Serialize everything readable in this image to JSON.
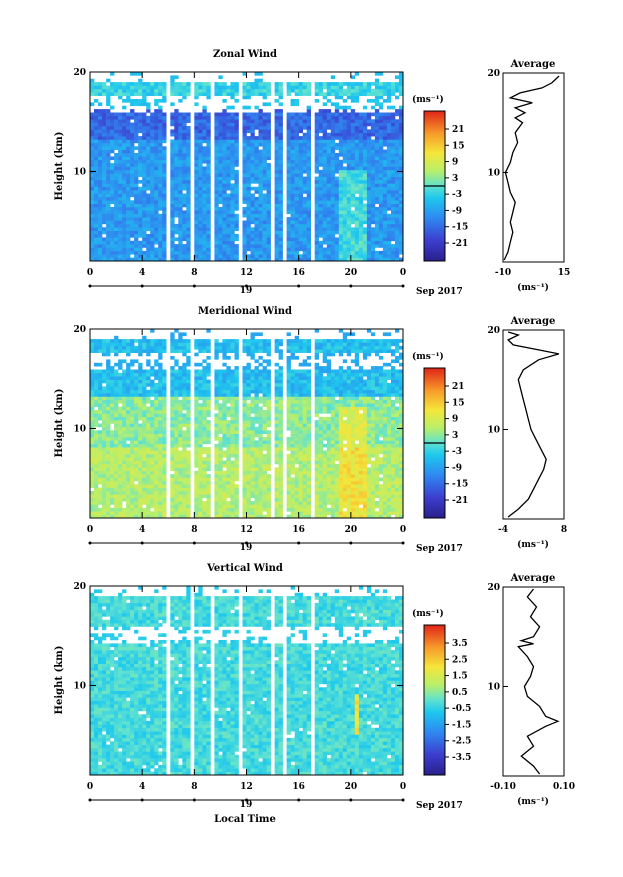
{
  "figure": {
    "date_label": "Sep 2017",
    "day_label": "19",
    "xlabel": "Local Time",
    "ylabel": "Height (km)",
    "unit": "(ms⁻¹)",
    "average_title": "Average"
  },
  "chart_data": [
    {
      "type": "heatmap",
      "title": "Zonal Wind",
      "x_ticks": [
        "0",
        "4",
        "8",
        "12",
        "16",
        "20",
        "0"
      ],
      "y_ticks": [
        "20",
        "10"
      ],
      "xlim": [
        0,
        24
      ],
      "ylim": [
        1,
        20
      ],
      "colorbar": {
        "ticks": [
          "21",
          "15",
          "9",
          "3",
          "-3",
          "-9",
          "-15",
          "-21"
        ],
        "range": [
          -24,
          24
        ],
        "contour_level": 0
      },
      "average": {
        "x_ticks": [
          "-10",
          "15"
        ],
        "xlim": [
          -10,
          15
        ],
        "ylim": [
          1,
          20
        ],
        "y_ticks": [
          "20",
          "10"
        ],
        "profile": [
          [
            -9.5,
            1.2
          ],
          [
            -8,
            2
          ],
          [
            -7,
            3
          ],
          [
            -6,
            4
          ],
          [
            -7,
            5
          ],
          [
            -6,
            6
          ],
          [
            -5,
            7
          ],
          [
            -7,
            8
          ],
          [
            -8,
            9
          ],
          [
            -9,
            10
          ],
          [
            -7,
            11
          ],
          [
            -6,
            12
          ],
          [
            -4,
            13
          ],
          [
            -5,
            14
          ],
          [
            -2,
            15
          ],
          [
            -5,
            15.5
          ],
          [
            -1,
            16
          ],
          [
            -5,
            16.5
          ],
          [
            2,
            17
          ],
          [
            -7,
            17.5
          ],
          [
            -3,
            18
          ],
          [
            6,
            18.5
          ],
          [
            10,
            19
          ],
          [
            13,
            19.7
          ]
        ]
      }
    },
    {
      "type": "heatmap",
      "title": "Meridional Wind",
      "x_ticks": [
        "0",
        "4",
        "8",
        "12",
        "16",
        "20",
        "0"
      ],
      "y_ticks": [
        "20",
        "10"
      ],
      "xlim": [
        0,
        24
      ],
      "ylim": [
        1,
        20
      ],
      "colorbar": {
        "ticks": [
          "21",
          "15",
          "9",
          "3",
          "-3",
          "-9",
          "-15",
          "-21"
        ],
        "range": [
          -24,
          24
        ],
        "contour_level": 0
      },
      "average": {
        "x_ticks": [
          "-4",
          "8"
        ],
        "xlim": [
          -4,
          8
        ],
        "ylim": [
          1,
          20
        ],
        "y_ticks": [
          "20",
          "10"
        ],
        "profile": [
          [
            -3,
            1.2
          ],
          [
            -1,
            2
          ],
          [
            1,
            3
          ],
          [
            2,
            4
          ],
          [
            3,
            5
          ],
          [
            4,
            6
          ],
          [
            4.5,
            7
          ],
          [
            3.5,
            8
          ],
          [
            2.5,
            9
          ],
          [
            1.5,
            10
          ],
          [
            1,
            11
          ],
          [
            0.5,
            12
          ],
          [
            0,
            13
          ],
          [
            -0.5,
            14
          ],
          [
            -1,
            15
          ],
          [
            0,
            16
          ],
          [
            3,
            17
          ],
          [
            7,
            17.6
          ],
          [
            3,
            18
          ],
          [
            -2,
            18.5
          ],
          [
            -3,
            19
          ],
          [
            -1,
            19.5
          ],
          [
            -3,
            19.8
          ]
        ]
      }
    },
    {
      "type": "heatmap",
      "title": "Vertical Wind",
      "x_ticks": [
        "0",
        "4",
        "8",
        "12",
        "16",
        "20",
        "0"
      ],
      "y_ticks": [
        "20",
        "10"
      ],
      "xlim": [
        0,
        24
      ],
      "ylim": [
        1,
        20
      ],
      "colorbar": {
        "ticks": [
          "3.5",
          "2.5",
          "1.5",
          "0.5",
          "-0.5",
          "-1.5",
          "-2.5",
          "-3.5"
        ],
        "range": [
          -4,
          4
        ],
        "contour_level": null
      },
      "average": {
        "x_ticks": [
          "-0.10",
          "0.10"
        ],
        "xlim": [
          -0.1,
          0.1
        ],
        "ylim": [
          1,
          20
        ],
        "y_ticks": [
          "20",
          "10"
        ],
        "profile": [
          [
            0.02,
            1.2
          ],
          [
            0.0,
            2
          ],
          [
            -0.04,
            3
          ],
          [
            0.0,
            4
          ],
          [
            -0.02,
            5
          ],
          [
            0.04,
            6
          ],
          [
            0.08,
            6.5
          ],
          [
            0.04,
            7
          ],
          [
            0.02,
            8
          ],
          [
            -0.02,
            9
          ],
          [
            -0.03,
            10
          ],
          [
            -0.01,
            11
          ],
          [
            0.0,
            12
          ],
          [
            -0.02,
            13
          ],
          [
            -0.05,
            14
          ],
          [
            0.0,
            14.3
          ],
          [
            -0.04,
            14.6
          ],
          [
            0.0,
            15
          ],
          [
            0.02,
            16
          ],
          [
            -0.01,
            17
          ],
          [
            0.01,
            18
          ],
          [
            -0.02,
            19
          ],
          [
            0.0,
            19.8
          ]
        ]
      }
    }
  ]
}
